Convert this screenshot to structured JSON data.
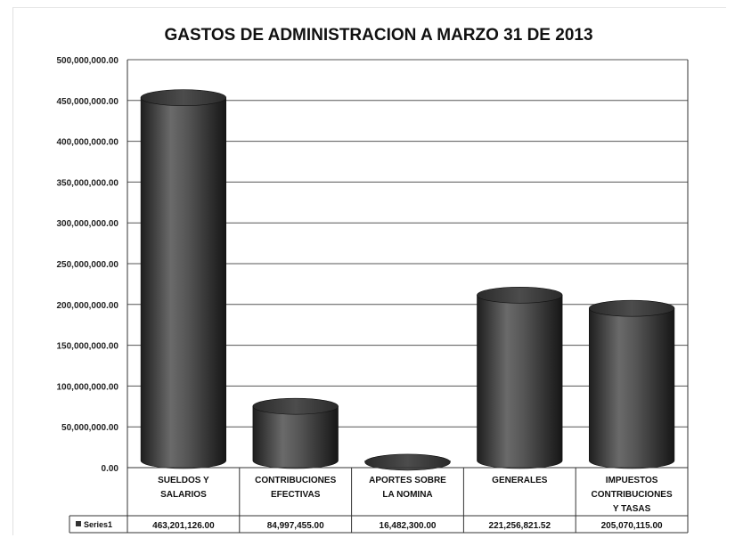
{
  "chart_data": {
    "type": "bar",
    "title": "GASTOS DE ADMINISTRACION A  MARZO 31 DE 2013",
    "categories": [
      [
        "SUELDOS Y",
        "SALARIOS"
      ],
      [
        "CONTRIBUCIONES",
        "EFECTIVAS"
      ],
      [
        "APORTES SOBRE",
        "LA NOMINA"
      ],
      [
        "GENERALES"
      ],
      [
        "IMPUESTOS",
        "CONTRIBUCIONES",
        "Y TASAS"
      ]
    ],
    "series": [
      {
        "name": "Series1",
        "values": [
          463201126.0,
          84997455.0,
          16482300.0,
          221256821.52,
          205070115.0
        ],
        "value_labels": [
          "463,201,126.00",
          "84,997,455.00",
          "16,482,300.00",
          "221,256,821.52",
          "205,070,115.00"
        ]
      }
    ],
    "ylim": [
      0,
      500000000
    ],
    "yticks": [
      0,
      50000000,
      100000000,
      150000000,
      200000000,
      250000000,
      300000000,
      350000000,
      400000000,
      450000000,
      500000000
    ],
    "ytick_labels": [
      "0.00",
      "50,000,000.00",
      "100,000,000.00",
      "150,000,000.00",
      "200,000,000.00",
      "250,000,000.00",
      "300,000,000.00",
      "350,000,000.00",
      "400,000,000.00",
      "450,000,000.00",
      "500,000,000.00"
    ],
    "grid": true,
    "legend": "data-table",
    "bar_shape": "cylinder",
    "colors": {
      "bar": "#4a4a4a",
      "bar_dark": "#1e1e1e",
      "bar_light": "#7a7a7a",
      "grid": "#555555"
    }
  }
}
